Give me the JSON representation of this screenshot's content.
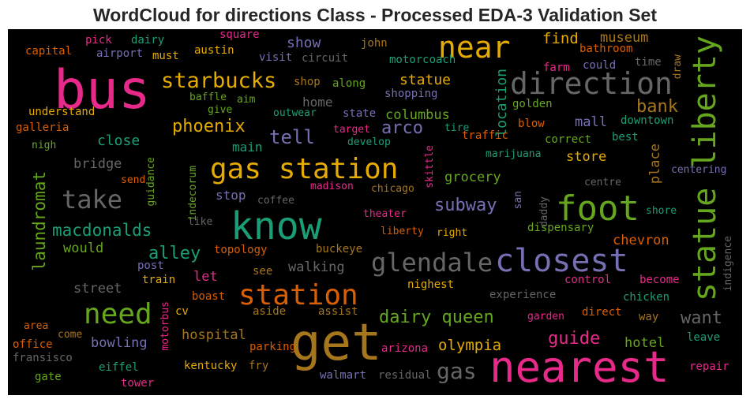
{
  "chart_data": {
    "type": "wordcloud",
    "title": "WordCloud for directions Class - Processed EDA-3 Validation Set",
    "background": "#000000",
    "palette": [
      "#1b9e77",
      "#d95f02",
      "#7570b3",
      "#e7298a",
      "#66a61e",
      "#e6ab02",
      "#a6761d",
      "#666666"
    ],
    "words": [
      {
        "text": "bus",
        "color": "#e7298a"
      },
      {
        "text": "near",
        "color": "#e6ab02"
      },
      {
        "text": "direction",
        "color": "#666666"
      },
      {
        "text": "statue liberty",
        "color": "#66a61e"
      },
      {
        "text": "starbucks",
        "color": "#e6ab02"
      },
      {
        "text": "gas station",
        "color": "#e6ab02"
      },
      {
        "text": "take",
        "color": "#666666"
      },
      {
        "text": "know",
        "color": "#1b9e77"
      },
      {
        "text": "foot",
        "color": "#66a61e"
      },
      {
        "text": "glendale",
        "color": "#666666"
      },
      {
        "text": "closest",
        "color": "#7570b3"
      },
      {
        "text": "station",
        "color": "#d95f02"
      },
      {
        "text": "need",
        "color": "#66a61e"
      },
      {
        "text": "get",
        "color": "#a6761d"
      },
      {
        "text": "nearest",
        "color": "#e7298a"
      },
      {
        "text": "gas",
        "color": "#666666"
      },
      {
        "text": "macdonalds",
        "color": "#1b9e77"
      },
      {
        "text": "laundromat",
        "color": "#66a61e"
      },
      {
        "text": "phoenix",
        "color": "#e6ab02"
      },
      {
        "text": "dairy queen",
        "color": "#66a61e"
      },
      {
        "text": "guide",
        "color": "#e7298a"
      },
      {
        "text": "olympia",
        "color": "#e6ab02"
      },
      {
        "text": "subway",
        "color": "#7570b3"
      },
      {
        "text": "tell",
        "color": "#7570b3"
      },
      {
        "text": "alley",
        "color": "#1b9e77"
      },
      {
        "text": "bank",
        "color": "#a6761d"
      },
      {
        "text": "want",
        "color": "#666666"
      },
      {
        "text": "hospital",
        "color": "#a6761d"
      },
      {
        "text": "bowling",
        "color": "#7570b3"
      },
      {
        "text": "hotel",
        "color": "#66a61e"
      },
      {
        "text": "location",
        "color": "#1b9e77"
      },
      {
        "text": "find",
        "color": "#e6ab02"
      },
      {
        "text": "museum",
        "color": "#a6761d"
      },
      {
        "text": "show",
        "color": "#7570b3"
      },
      {
        "text": "statue",
        "color": "#e6ab02"
      },
      {
        "text": "arco",
        "color": "#7570b3"
      },
      {
        "text": "columbus",
        "color": "#66a61e"
      },
      {
        "text": "close",
        "color": "#1b9e77"
      },
      {
        "text": "bridge",
        "color": "#666666"
      },
      {
        "text": "main",
        "color": "#1b9e77"
      },
      {
        "text": "home",
        "color": "#666666"
      },
      {
        "text": "mall",
        "color": "#7570b3"
      },
      {
        "text": "store",
        "color": "#e6ab02"
      },
      {
        "text": "grocery",
        "color": "#66a61e"
      },
      {
        "text": "place",
        "color": "#a6761d"
      },
      {
        "text": "chevron",
        "color": "#d95f02"
      },
      {
        "text": "would",
        "color": "#66a61e"
      },
      {
        "text": "let",
        "color": "#e7298a"
      },
      {
        "text": "street",
        "color": "#666666"
      },
      {
        "text": "walking",
        "color": "#666666"
      },
      {
        "text": "stop",
        "color": "#7570b3"
      },
      {
        "text": "right",
        "color": "#e6ab02"
      },
      {
        "text": "control",
        "color": "#e7298a"
      },
      {
        "text": "become",
        "color": "#e7298a"
      },
      {
        "text": "chicken",
        "color": "#1b9e77"
      },
      {
        "text": "direct",
        "color": "#d95f02"
      },
      {
        "text": "garden",
        "color": "#e7298a"
      },
      {
        "text": "way",
        "color": "#a6761d"
      },
      {
        "text": "leave",
        "color": "#1b9e77"
      },
      {
        "text": "repair",
        "color": "#e7298a"
      },
      {
        "text": "arizona",
        "color": "#e7298a"
      },
      {
        "text": "walmart",
        "color": "#7570b3"
      },
      {
        "text": "residual",
        "color": "#666666"
      },
      {
        "text": "eiffel",
        "color": "#1b9e77"
      },
      {
        "text": "tower",
        "color": "#e7298a"
      },
      {
        "text": "kentucky",
        "color": "#e6ab02"
      },
      {
        "text": "fry",
        "color": "#a6761d"
      },
      {
        "text": "parking",
        "color": "#d95f02"
      },
      {
        "text": "office",
        "color": "#d95f02"
      },
      {
        "text": "fransisco",
        "color": "#666666"
      },
      {
        "text": "gate",
        "color": "#66a61e"
      },
      {
        "text": "area",
        "color": "#d95f02"
      },
      {
        "text": "come",
        "color": "#a6761d"
      },
      {
        "text": "cv",
        "color": "#e6ab02"
      },
      {
        "text": "aside",
        "color": "#a6761d"
      },
      {
        "text": "assist",
        "color": "#a6761d"
      },
      {
        "text": "motorbus",
        "color": "#e7298a"
      },
      {
        "text": "boast",
        "color": "#d95f02"
      },
      {
        "text": "train",
        "color": "#e6ab02"
      },
      {
        "text": "post",
        "color": "#7570b3"
      },
      {
        "text": "see",
        "color": "#a6761d"
      },
      {
        "text": "topology",
        "color": "#d95f02"
      },
      {
        "text": "buckeye",
        "color": "#a6761d"
      },
      {
        "text": "nighest",
        "color": "#e6ab02"
      },
      {
        "text": "experience",
        "color": "#666666"
      },
      {
        "text": "indigence",
        "color": "#666666"
      },
      {
        "text": "dispensary",
        "color": "#66a61e"
      },
      {
        "text": "shore",
        "color": "#1b9e77"
      },
      {
        "text": "centering",
        "color": "#7570b3"
      },
      {
        "text": "centre",
        "color": "#666666"
      },
      {
        "text": "daddy",
        "color": "#666666"
      },
      {
        "text": "san",
        "color": "#7570b3"
      },
      {
        "text": "skittle",
        "color": "#e7298a"
      },
      {
        "text": "theater",
        "color": "#e7298a"
      },
      {
        "text": "liberty",
        "color": "#d95f02"
      },
      {
        "text": "chicago",
        "color": "#a6761d"
      },
      {
        "text": "madison",
        "color": "#e7298a"
      },
      {
        "text": "coffee",
        "color": "#666666"
      },
      {
        "text": "like",
        "color": "#666666"
      },
      {
        "text": "indecorum",
        "color": "#66a61e"
      },
      {
        "text": "guidance",
        "color": "#66a61e"
      },
      {
        "text": "send",
        "color": "#d95f02"
      },
      {
        "text": "capital",
        "color": "#d95f02"
      },
      {
        "text": "pick",
        "color": "#e7298a"
      },
      {
        "text": "dairy",
        "color": "#1b9e77"
      },
      {
        "text": "airport",
        "color": "#7570b3"
      },
      {
        "text": "must",
        "color": "#e6ab02"
      },
      {
        "text": "square",
        "color": "#e7298a"
      },
      {
        "text": "austin",
        "color": "#e6ab02"
      },
      {
        "text": "visit",
        "color": "#7570b3"
      },
      {
        "text": "circuit",
        "color": "#666666"
      },
      {
        "text": "john",
        "color": "#a6761d"
      },
      {
        "text": "motorcoach",
        "color": "#1b9e77"
      },
      {
        "text": "farm",
        "color": "#e7298a"
      },
      {
        "text": "bathroom",
        "color": "#d95f02"
      },
      {
        "text": "could",
        "color": "#7570b3"
      },
      {
        "text": "time",
        "color": "#666666"
      },
      {
        "text": "draw",
        "color": "#a6761d"
      },
      {
        "text": "shop",
        "color": "#a6761d"
      },
      {
        "text": "along",
        "color": "#66a61e"
      },
      {
        "text": "shopping",
        "color": "#7570b3"
      },
      {
        "text": "baffle",
        "color": "#66a61e"
      },
      {
        "text": "aim",
        "color": "#66a61e"
      },
      {
        "text": "give",
        "color": "#66a61e"
      },
      {
        "text": "understand",
        "color": "#e6ab02"
      },
      {
        "text": "galleria",
        "color": "#d95f02"
      },
      {
        "text": "nigh",
        "color": "#66a61e"
      },
      {
        "text": "outwear",
        "color": "#1b9e77"
      },
      {
        "text": "state",
        "color": "#7570b3"
      },
      {
        "text": "target",
        "color": "#e7298a"
      },
      {
        "text": "develop",
        "color": "#1b9e77"
      },
      {
        "text": "tire",
        "color": "#1b9e77"
      },
      {
        "text": "traffic",
        "color": "#d95f02"
      },
      {
        "text": "golden",
        "color": "#66a61e"
      },
      {
        "text": "blow",
        "color": "#d95f02"
      },
      {
        "text": "marijuana",
        "color": "#1b9e77"
      },
      {
        "text": "correct",
        "color": "#66a61e"
      },
      {
        "text": "best",
        "color": "#1b9e77"
      },
      {
        "text": "downtown",
        "color": "#1b9e77"
      }
    ]
  }
}
